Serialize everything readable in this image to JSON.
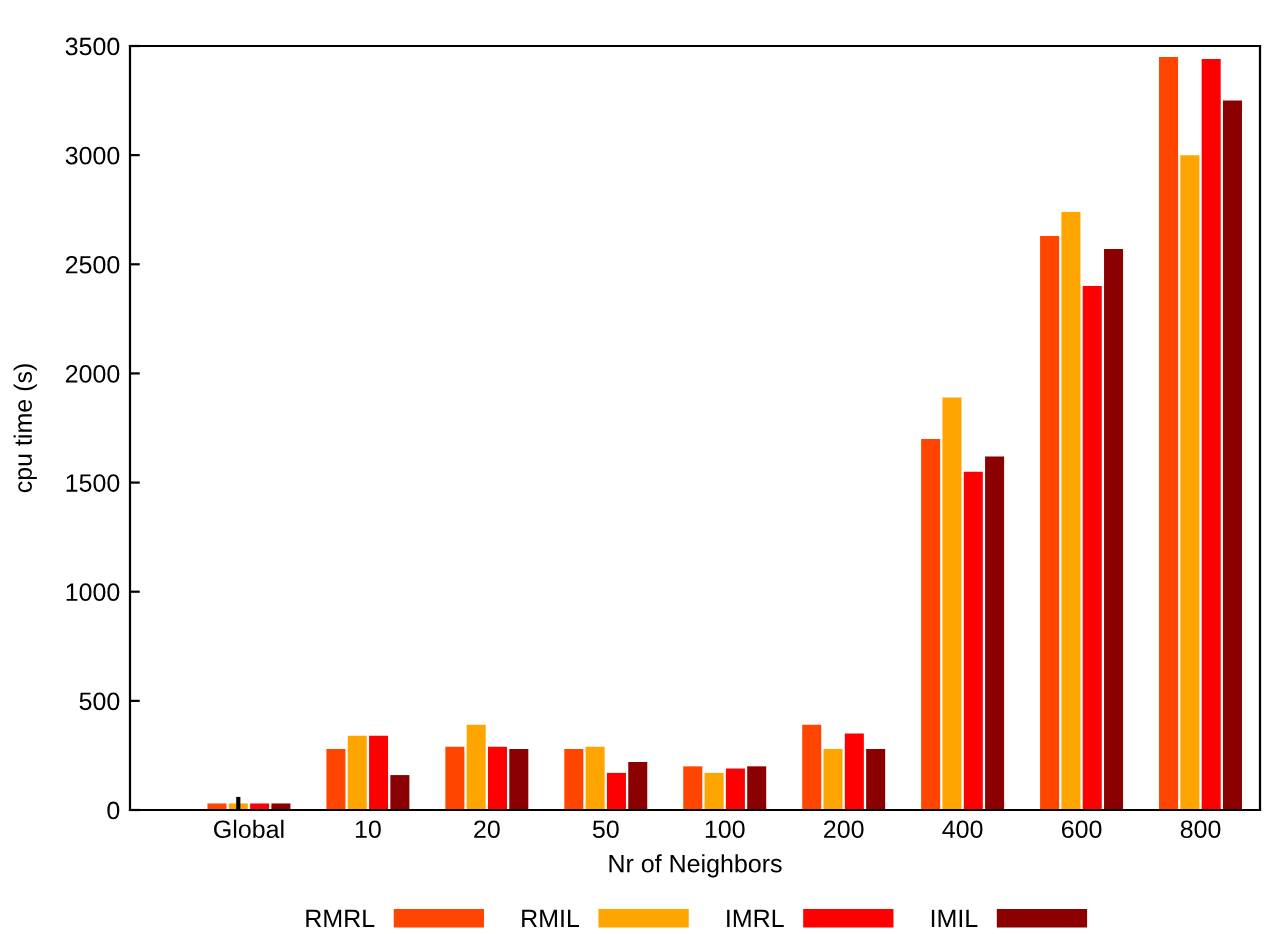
{
  "chart_data": {
    "type": "bar",
    "xlabel": "Nr of Neighbors",
    "ylabel": "cpu time (s)",
    "categories": [
      "Global",
      "10",
      "20",
      "50",
      "100",
      "200",
      "400",
      "600",
      "800"
    ],
    "series": [
      {
        "name": "RMRL",
        "color": "#ff4500",
        "values": [
          30,
          280,
          290,
          280,
          200,
          390,
          1700,
          2630,
          3450
        ]
      },
      {
        "name": "RMIL",
        "color": "#ffa500",
        "values": [
          30,
          340,
          390,
          290,
          170,
          280,
          1890,
          2740,
          3000
        ],
        "errors": [
          [
            30,
            30
          ],
          null,
          null,
          null,
          null,
          null,
          null,
          null,
          null
        ]
      },
      {
        "name": "IMRL",
        "color": "#ff0000",
        "values": [
          30,
          340,
          290,
          170,
          190,
          350,
          1550,
          2400,
          3440
        ]
      },
      {
        "name": "IMIL",
        "color": "#8b0000",
        "values": [
          30,
          160,
          280,
          220,
          200,
          280,
          1620,
          2570,
          3250
        ]
      }
    ],
    "ylim": [
      0,
      3500
    ],
    "yticks": [
      0,
      500,
      1000,
      1500,
      2000,
      2500,
      3000,
      3500
    ],
    "grid": false,
    "legend": "bottom"
  }
}
